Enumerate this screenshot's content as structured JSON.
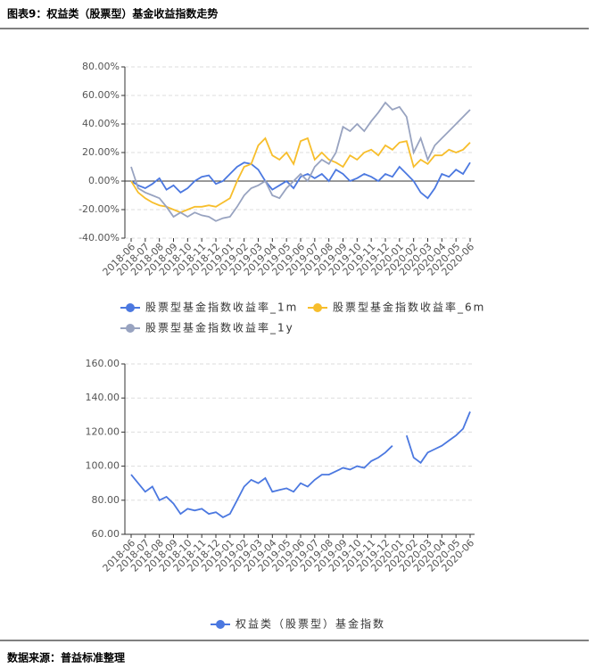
{
  "title": "图表9：权益类（股票型）基金收益指数走势",
  "source": "数据来源：普益标准整理",
  "chart_data": [
    {
      "type": "line",
      "categories": [
        "2018-06",
        null,
        "2018-07",
        null,
        "2018-08",
        null,
        "2018-09",
        null,
        "2018-10",
        null,
        "2018-11",
        null,
        "2018-12",
        null,
        "2019-01",
        null,
        "2019-02",
        null,
        "2019-03",
        null,
        "2019-04",
        null,
        "2019-05",
        null,
        "2019-06",
        null,
        "2019-07",
        null,
        "2019-08",
        null,
        "2019-09",
        null,
        "2019-10",
        null,
        "2019-11",
        null,
        "2019-12",
        null,
        "2020-01",
        null,
        "2020-02",
        null,
        "2020-03",
        null,
        "2020-04",
        null,
        "2020-05",
        null,
        "2020-06"
      ],
      "series": [
        {
          "name": "股票型基金指数收益率_1m",
          "color": "#4b78e0",
          "values": [
            0,
            -3,
            -5,
            -2,
            2,
            -6,
            -3,
            -8,
            -5,
            0,
            3,
            4,
            -2,
            0,
            5,
            10,
            13,
            12,
            8,
            0,
            -6,
            -3,
            0,
            -5,
            3,
            5,
            2,
            5,
            0,
            8,
            5,
            0,
            2,
            5,
            3,
            0,
            5,
            3,
            10,
            5,
            0,
            -8,
            -12,
            -5,
            5,
            3,
            8,
            5,
            13
          ]
        },
        {
          "name": "股票型基金指数收益率_6m",
          "color": "#f7be2c",
          "values": [
            0,
            -8,
            -12,
            -15,
            -17,
            -18,
            -20,
            -22,
            -20,
            -18,
            -18,
            -17,
            -18,
            -15,
            -12,
            0,
            10,
            12,
            25,
            30,
            18,
            15,
            20,
            12,
            28,
            30,
            15,
            20,
            15,
            13,
            10,
            18,
            15,
            20,
            22,
            18,
            25,
            22,
            27,
            28,
            10,
            15,
            12,
            18,
            18,
            22,
            20,
            22,
            27
          ]
        },
        {
          "name": "股票型基金指数收益率_1y",
          "color": "#98a3c0",
          "values": [
            10,
            -5,
            -8,
            -10,
            -12,
            -18,
            -25,
            -22,
            -25,
            -22,
            -24,
            -25,
            -28,
            -26,
            -25,
            -18,
            -10,
            -5,
            -3,
            0,
            -10,
            -12,
            -5,
            0,
            5,
            0,
            10,
            15,
            12,
            20,
            38,
            35,
            40,
            35,
            42,
            48,
            55,
            50,
            52,
            45,
            20,
            30,
            15,
            25,
            30,
            35,
            40,
            45,
            50
          ]
        }
      ],
      "ylim": [
        -40,
        80
      ],
      "yticks": [
        {
          "value": -40,
          "label": "-40.00%"
        },
        {
          "value": -20,
          "label": "-20.00%"
        },
        {
          "value": 0,
          "label": "0.00%"
        },
        {
          "value": 20,
          "label": "20.00%"
        },
        {
          "value": 40,
          "label": "40.00%"
        },
        {
          "value": 60,
          "label": "60.00%"
        },
        {
          "value": 80,
          "label": "80.00%"
        }
      ],
      "grid": true,
      "legend": "bottom"
    },
    {
      "type": "line",
      "categories": [
        "2018-06",
        null,
        "2018-07",
        null,
        "2018-08",
        null,
        "2018-09",
        null,
        "2018-10",
        null,
        "2018-11",
        null,
        "2018-12",
        null,
        "2019-01",
        null,
        "2019-02",
        null,
        "2019-03",
        null,
        "2019-04",
        null,
        "2019-05",
        null,
        "2019-06",
        null,
        "2019-07",
        null,
        "2019-08",
        null,
        "2019-09",
        null,
        "2019-10",
        null,
        "2019-11",
        null,
        "2019-12",
        null,
        "2020-01",
        null,
        "2020-02",
        null,
        "2020-03",
        null,
        "2020-04",
        null,
        "2020-05",
        null,
        "2020-06"
      ],
      "series": [
        {
          "name": "权益类（股票型）基金指数",
          "color": "#4b78e0",
          "values": [
            95,
            90,
            85,
            88,
            80,
            82,
            78,
            72,
            75,
            74,
            75,
            72,
            73,
            70,
            72,
            80,
            88,
            92,
            90,
            93,
            85,
            86,
            87,
            85,
            90,
            88,
            92,
            95,
            95,
            97,
            99,
            98,
            100,
            99,
            103,
            105,
            108,
            112,
            null,
            118,
            105,
            102,
            108,
            110,
            112,
            115,
            118,
            122,
            132
          ]
        }
      ],
      "ylim": [
        60,
        160
      ],
      "yticks": [
        {
          "value": 60,
          "label": "60.00"
        },
        {
          "value": 80,
          "label": "80.00"
        },
        {
          "value": 100,
          "label": "100.00"
        },
        {
          "value": 120,
          "label": "120.00"
        },
        {
          "value": 140,
          "label": "140.00"
        },
        {
          "value": 160,
          "label": "160.00"
        }
      ],
      "grid": true,
      "legend": "bottom"
    }
  ]
}
